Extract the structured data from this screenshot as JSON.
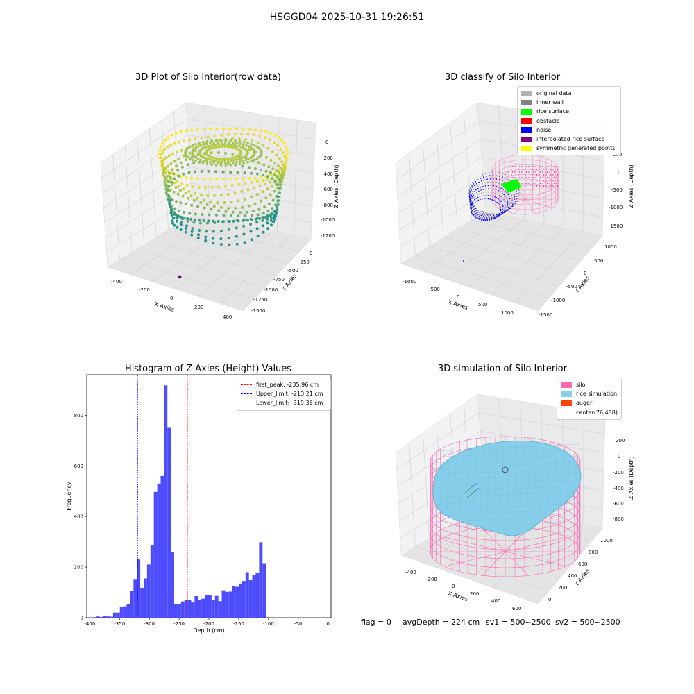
{
  "figure": {
    "title": "HSGGD04 2025-10-31 19:26:51",
    "status": {
      "flag": "flag = 0",
      "avg_depth": "avgDepth = 224 cm",
      "sv1": "sv1 = 500~2500",
      "sv2": "sv2 = 500~2500"
    }
  },
  "colors": {
    "hist_bar": "#4d4dff",
    "first_peak": "#ff0000",
    "limit": "#0000ff",
    "silo": "#ff69b4",
    "rice": "#87ceeb",
    "auger": "#ff4500",
    "original": "#b0b0b0",
    "inner_wall": "#808080",
    "rice_surface": "#00ff00",
    "obstacle": "#ff0000",
    "noise": "#0000ff",
    "interpolated": "#800080",
    "symmetric": "#ffff00"
  },
  "plot1": {
    "title": "3D Plot of Silo Interior(row data)",
    "xlabel": "X Axies",
    "ylabel": "Y Axies",
    "zlabel": "Z Axies (Depth)",
    "xticks": [
      "-400",
      "-200",
      "0",
      "200",
      "400"
    ],
    "yticks": [
      "0",
      "-250",
      "-500",
      "-750",
      "-1000",
      "-1250",
      "-1500"
    ],
    "zticks": [
      "0",
      "-200",
      "-400",
      "-600",
      "-800",
      "-1000",
      "-1200"
    ]
  },
  "plot2": {
    "title": "3D classify of Silo Interior",
    "xlabel": "X Axies",
    "ylabel": "Y Axies",
    "zlabel": "Z Axies (Depth)",
    "xticks": [
      "-1000",
      "-500",
      "0",
      "500",
      "1000"
    ],
    "yticks": [
      "1000",
      "500",
      "0",
      "-500",
      "-1000",
      "-1500"
    ],
    "zticks": [
      "500",
      "0",
      "-500",
      "-1000",
      "-1500"
    ],
    "legend": [
      {
        "label": "original data",
        "color": "#b0b0b0"
      },
      {
        "label": "inner wall",
        "color": "#808080"
      },
      {
        "label": "rice surface",
        "color": "#00ff00"
      },
      {
        "label": "obstacle",
        "color": "#ff0000"
      },
      {
        "label": "noise",
        "color": "#0000ff"
      },
      {
        "label": "interpolated rice surface",
        "color": "#800080"
      },
      {
        "label": "symmetric generated points",
        "color": "#ffff00"
      }
    ]
  },
  "plot4": {
    "title": "3D simulation of Silo Interior",
    "xlabel": "X Axies",
    "ylabel": "Y Axies",
    "zlabel": "Z Axies (Depth)",
    "xticks": [
      "-400",
      "-200",
      "0",
      "200",
      "400",
      "600"
    ],
    "yticks": [
      "0",
      "200",
      "400",
      "600",
      "800",
      "1000"
    ],
    "zticks": [
      "200",
      "0",
      "-200",
      "-400",
      "-600",
      "-800"
    ],
    "legend": [
      {
        "label": "silo",
        "color": "#ff69b4"
      },
      {
        "label": "rice simulation",
        "color": "#87ceeb"
      },
      {
        "label": "auger",
        "color": "#ff4500"
      },
      {
        "label": "center(76,488)",
        "color": ""
      }
    ]
  },
  "chart_data": {
    "type": "bar",
    "title": "Histogram of Z-Axies (Height) Values",
    "xlabel": "Depth (cm)",
    "ylabel": "Frequency",
    "xlim": [
      -405,
      5
    ],
    "ylim": [
      0,
      960
    ],
    "xticks": [
      -400,
      -350,
      -300,
      -250,
      -200,
      -150,
      -100,
      -50,
      0
    ],
    "yticks": [
      0,
      200,
      400,
      600,
      800
    ],
    "bin_edges_start": -395,
    "bin_width": 5.7,
    "values": [
      2,
      5,
      3,
      8,
      5,
      4,
      20,
      20,
      42,
      45,
      55,
      105,
      150,
      230,
      118,
      155,
      210,
      285,
      497,
      530,
      560,
      918,
      753,
      260,
      52,
      55,
      64,
      70,
      70,
      60,
      85,
      70,
      75,
      88,
      88,
      70,
      86,
      65,
      108,
      102,
      103,
      125,
      122,
      135,
      145,
      180,
      148,
      168,
      178,
      298,
      215
    ],
    "vlines": [
      {
        "label": "first_peak: -235.96 cm",
        "x": -235.96,
        "color": "#ff0000"
      },
      {
        "label": "Upper_limit: -213.21 cm",
        "x": -213.21,
        "color": "#0000ff"
      },
      {
        "label": "Lower_limit: -319.36 cm",
        "x": -319.36,
        "color": "#0000ff"
      }
    ],
    "legend_position": "upper right",
    "grid": false
  }
}
